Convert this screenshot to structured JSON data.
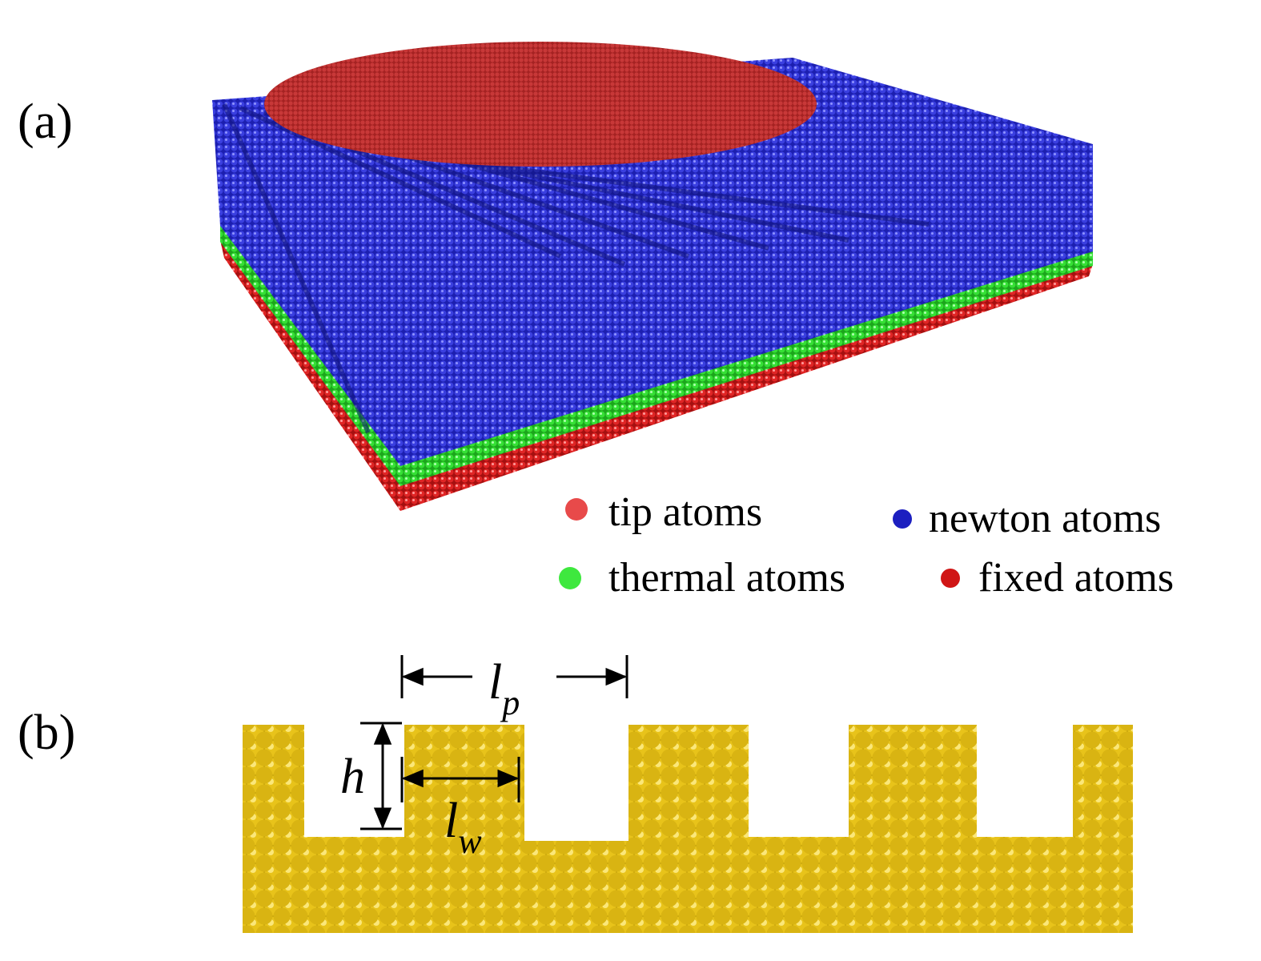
{
  "panel_a": {
    "label": "(a)",
    "legend": [
      "tip atoms",
      "newton atoms",
      "thermal atoms",
      "fixed atoms"
    ]
  },
  "panel_b": {
    "label": "(b)",
    "dimensions": [
      {
        "main": "l",
        "sub": "p"
      },
      {
        "main": "h"
      },
      {
        "main": "l",
        "sub": "w"
      }
    ]
  }
}
